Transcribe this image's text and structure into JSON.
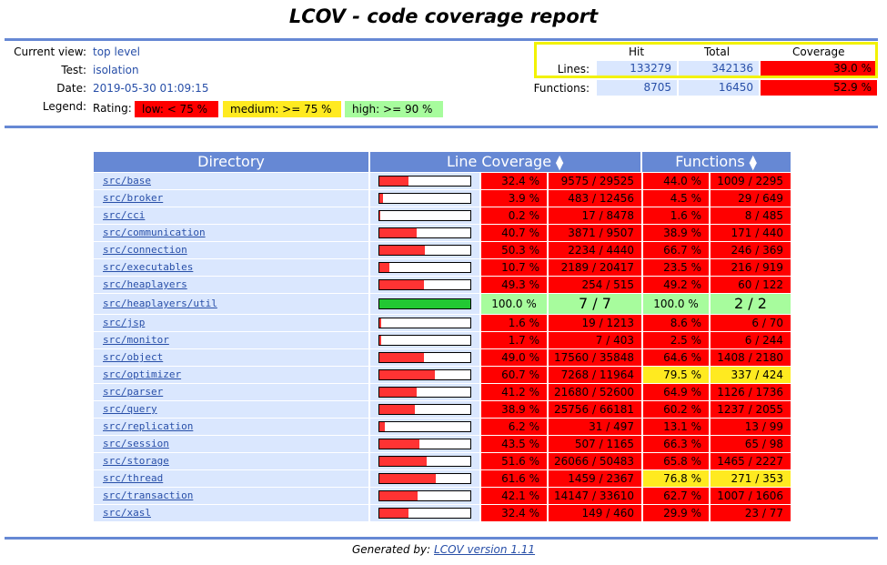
{
  "title": "LCOV - code coverage report",
  "header": {
    "current_view_label": "Current view:",
    "current_view": "top level",
    "test_label": "Test:",
    "test": "isolation",
    "date_label": "Date:",
    "date": "2019-05-30 01:09:15",
    "legend_label": "Legend:",
    "rating_label": "Rating:",
    "legend_low": "low: < 75 %",
    "legend_medium": "medium: >= 75 %",
    "legend_high": "high: >= 90 %"
  },
  "summary": {
    "col_hit": "Hit",
    "col_total": "Total",
    "col_coverage": "Coverage",
    "lines_label": "Lines:",
    "lines_hit": "133279",
    "lines_total": "342136",
    "lines_coverage": "39.0 %",
    "functions_label": "Functions:",
    "functions_hit": "8705",
    "functions_total": "16450",
    "functions_coverage": "52.9 %"
  },
  "table": {
    "col_directory": "Directory",
    "col_line_coverage": "Line Coverage",
    "col_functions": "Functions",
    "rows": [
      {
        "dir": "src/base",
        "pct": "32.4 %",
        "lines": "9575 / 29525",
        "fpct": "44.0 %",
        "funcs": "1009 / 2295",
        "frac": 0.324,
        "lc": "low",
        "fc": "low"
      },
      {
        "dir": "src/broker",
        "pct": "3.9 %",
        "lines": "483 / 12456",
        "fpct": "4.5 %",
        "funcs": "29 / 649",
        "frac": 0.039,
        "lc": "low",
        "fc": "low"
      },
      {
        "dir": "src/cci",
        "pct": "0.2 %",
        "lines": "17 / 8478",
        "fpct": "1.6 %",
        "funcs": "8 / 485",
        "frac": 0.002,
        "lc": "low",
        "fc": "low"
      },
      {
        "dir": "src/communication",
        "pct": "40.7 %",
        "lines": "3871 / 9507",
        "fpct": "38.9 %",
        "funcs": "171 / 440",
        "frac": 0.407,
        "lc": "low",
        "fc": "low"
      },
      {
        "dir": "src/connection",
        "pct": "50.3 %",
        "lines": "2234 / 4440",
        "fpct": "66.7 %",
        "funcs": "246 / 369",
        "frac": 0.503,
        "lc": "low",
        "fc": "low"
      },
      {
        "dir": "src/executables",
        "pct": "10.7 %",
        "lines": "2189 / 20417",
        "fpct": "23.5 %",
        "funcs": "216 / 919",
        "frac": 0.107,
        "lc": "low",
        "fc": "low"
      },
      {
        "dir": "src/heaplayers",
        "pct": "49.3 %",
        "lines": "254 / 515",
        "fpct": "49.2 %",
        "funcs": "60 / 122",
        "frac": 0.493,
        "lc": "low",
        "fc": "low"
      },
      {
        "dir": "src/heaplayers/util",
        "pct": "100.0 %",
        "lines": "7 / 7",
        "fpct": "100.0 %",
        "funcs": "2 / 2",
        "frac": 1.0,
        "lc": "high",
        "fc": "high",
        "big": true
      },
      {
        "dir": "src/jsp",
        "pct": "1.6 %",
        "lines": "19 / 1213",
        "fpct": "8.6 %",
        "funcs": "6 / 70",
        "frac": 0.016,
        "lc": "low",
        "fc": "low"
      },
      {
        "dir": "src/monitor",
        "pct": "1.7 %",
        "lines": "7 / 403",
        "fpct": "2.5 %",
        "funcs": "6 / 244",
        "frac": 0.017,
        "lc": "low",
        "fc": "low"
      },
      {
        "dir": "src/object",
        "pct": "49.0 %",
        "lines": "17560 / 35848",
        "fpct": "64.6 %",
        "funcs": "1408 / 2180",
        "frac": 0.49,
        "lc": "low",
        "fc": "low"
      },
      {
        "dir": "src/optimizer",
        "pct": "60.7 %",
        "lines": "7268 / 11964",
        "fpct": "79.5 %",
        "funcs": "337 / 424",
        "frac": 0.607,
        "lc": "low",
        "fc": "medium"
      },
      {
        "dir": "src/parser",
        "pct": "41.2 %",
        "lines": "21680 / 52600",
        "fpct": "64.9 %",
        "funcs": "1126 / 1736",
        "frac": 0.412,
        "lc": "low",
        "fc": "low"
      },
      {
        "dir": "src/query",
        "pct": "38.9 %",
        "lines": "25756 / 66181",
        "fpct": "60.2 %",
        "funcs": "1237 / 2055",
        "frac": 0.389,
        "lc": "low",
        "fc": "low"
      },
      {
        "dir": "src/replication",
        "pct": "6.2 %",
        "lines": "31 / 497",
        "fpct": "13.1 %",
        "funcs": "13 / 99",
        "frac": 0.062,
        "lc": "low",
        "fc": "low"
      },
      {
        "dir": "src/session",
        "pct": "43.5 %",
        "lines": "507 / 1165",
        "fpct": "66.3 %",
        "funcs": "65 / 98",
        "frac": 0.435,
        "lc": "low",
        "fc": "low"
      },
      {
        "dir": "src/storage",
        "pct": "51.6 %",
        "lines": "26066 / 50483",
        "fpct": "65.8 %",
        "funcs": "1465 / 2227",
        "frac": 0.516,
        "lc": "low",
        "fc": "low"
      },
      {
        "dir": "src/thread",
        "pct": "61.6 %",
        "lines": "1459 / 2367",
        "fpct": "76.8 %",
        "funcs": "271 / 353",
        "frac": 0.616,
        "lc": "low",
        "fc": "medium"
      },
      {
        "dir": "src/transaction",
        "pct": "42.1 %",
        "lines": "14147 / 33610",
        "fpct": "62.7 %",
        "funcs": "1007 / 1606",
        "frac": 0.421,
        "lc": "low",
        "fc": "low"
      },
      {
        "dir": "src/xasl",
        "pct": "32.4 %",
        "lines": "149 / 460",
        "fpct": "29.9 %",
        "funcs": "23 / 77",
        "frac": 0.324,
        "lc": "low",
        "fc": "low"
      }
    ]
  },
  "footer": {
    "generated_by": "Generated by:",
    "lcov_link": "LCOV version 1.11"
  },
  "colors": {
    "low": "#ff0000",
    "medium": "#ffea20",
    "high": "#a7fc9d",
    "header_blue": "#6688d4",
    "cell_blue": "#dae7fe",
    "bar_low": "#ff3333",
    "bar_high": "#22c833"
  }
}
